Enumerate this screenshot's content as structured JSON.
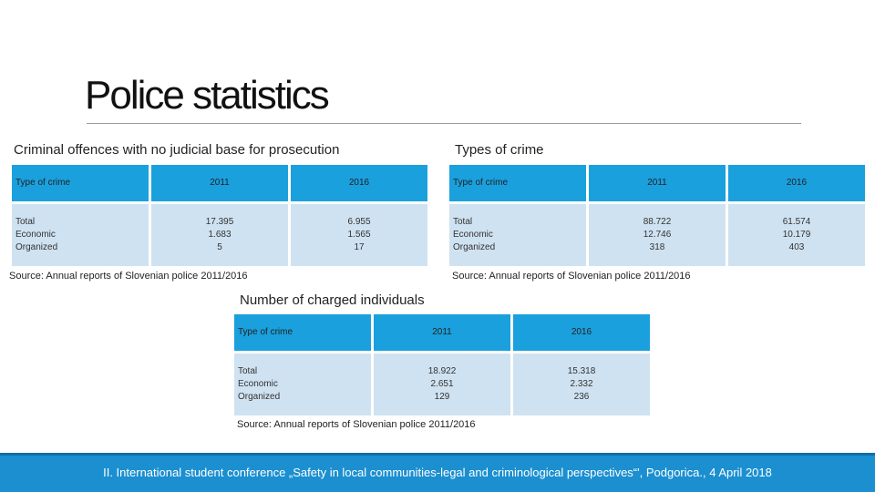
{
  "slide": {
    "title": "Police statistics"
  },
  "left_section": {
    "heading": "Criminal offences with no judicial base for prosecution",
    "columns": [
      "Type of crime",
      "2011",
      "2016"
    ],
    "row": {
      "labels": [
        "Total",
        "Economic",
        "Organized"
      ],
      "values_2011": [
        "17.395",
        "1.683",
        "5"
      ],
      "values_2016": [
        "6.955",
        "1.565",
        "17"
      ]
    },
    "source": "Source: Annual reports of Slovenian police 2011/2016"
  },
  "right_section": {
    "heading": "Types of crime",
    "columns": [
      "Type of crime",
      "2011",
      "2016"
    ],
    "row": {
      "labels": [
        "Total",
        "Economic",
        "Organized"
      ],
      "values_2011": [
        "88.722",
        "12.746",
        "318"
      ],
      "values_2016": [
        "61.574",
        "10.179",
        "403"
      ]
    },
    "source": "Source: Annual reports of Slovenian police 2011/2016"
  },
  "bottom_section": {
    "heading": "Number of charged individuals",
    "columns": [
      "Type of crime",
      "2011",
      "2016"
    ],
    "row": {
      "labels": [
        "Total",
        "Economic",
        "Organized"
      ],
      "values_2011": [
        "18.922",
        "2.651",
        "129"
      ],
      "values_2016": [
        "15.318",
        "2.332",
        "236"
      ]
    },
    "source": "Source: Annual reports of Slovenian police 2011/2016"
  },
  "footer": {
    "text": "II. International student conference „Safety in local communities-legal and criminological perspectives“', Podgorica., 4 April 2018"
  },
  "colors": {
    "header_fill": "#1aa0dd",
    "body_fill": "#cfe2f1",
    "footer_fill": "#1b8fd0"
  }
}
